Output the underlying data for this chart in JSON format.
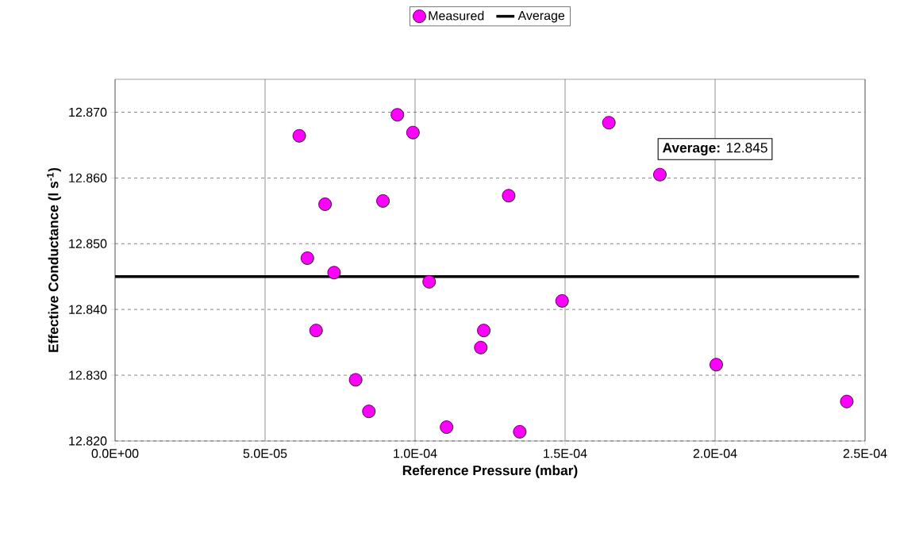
{
  "chart_data": {
    "type": "scatter",
    "xlabel": "Reference Pressure (mbar)",
    "ylabel": "Effective Conductance (l s$^{-1}$)",
    "xlim": [
      0,
      0.00025
    ],
    "ylim": [
      12.82,
      12.875
    ],
    "xticks": [
      {
        "value": 0,
        "label": "0.0E+00"
      },
      {
        "value": 5e-05,
        "label": "5.0E-05"
      },
      {
        "value": 0.0001,
        "label": "1.0E-04"
      },
      {
        "value": 0.00015,
        "label": "1.5E-04"
      },
      {
        "value": 0.0002,
        "label": "2.0E-04"
      },
      {
        "value": 0.00025,
        "label": "2.5E-04"
      }
    ],
    "yticks": [
      {
        "value": 12.82,
        "label": "12.820"
      },
      {
        "value": 12.83,
        "label": "12.830"
      },
      {
        "value": 12.84,
        "label": "12.840"
      },
      {
        "value": 12.85,
        "label": "12.850"
      },
      {
        "value": 12.86,
        "label": "12.860"
      },
      {
        "value": 12.87,
        "label": "12.870"
      }
    ],
    "grid": true,
    "legend": "top",
    "annotations": [
      "**Average:** 12.845"
    ],
    "series": [
      {
        "name": "Measured",
        "marker": "circle",
        "color": "#ff00ff",
        "x": [
          6.14e-05,
          9.41e-05,
          9.93e-05,
          7e-05,
          8.93e-05,
          6.41e-05,
          7.3e-05,
          0.0001047,
          6.7e-05,
          8.02e-05,
          8.46e-05,
          0.0001105,
          0.0001349,
          0.0001229,
          0.0001219,
          0.0001312,
          0.000149,
          0.0001646,
          0.0001816,
          0.0002004,
          0.0002439
        ],
        "values": [
          12.8664,
          12.8696,
          12.8669,
          12.856,
          12.8565,
          12.8478,
          12.8456,
          12.8442,
          12.8368,
          12.8293,
          12.8245,
          12.8221,
          12.8214,
          12.8368,
          12.8342,
          12.8573,
          12.8413,
          12.8684,
          12.8605,
          12.8316,
          12.826
        ]
      },
      {
        "name": "Average",
        "type": "line",
        "color": "#000000",
        "line_style": "solid",
        "marker": "none",
        "x": [
          0,
          0.000248
        ],
        "values": [
          12.845,
          12.845
        ]
      }
    ]
  }
}
